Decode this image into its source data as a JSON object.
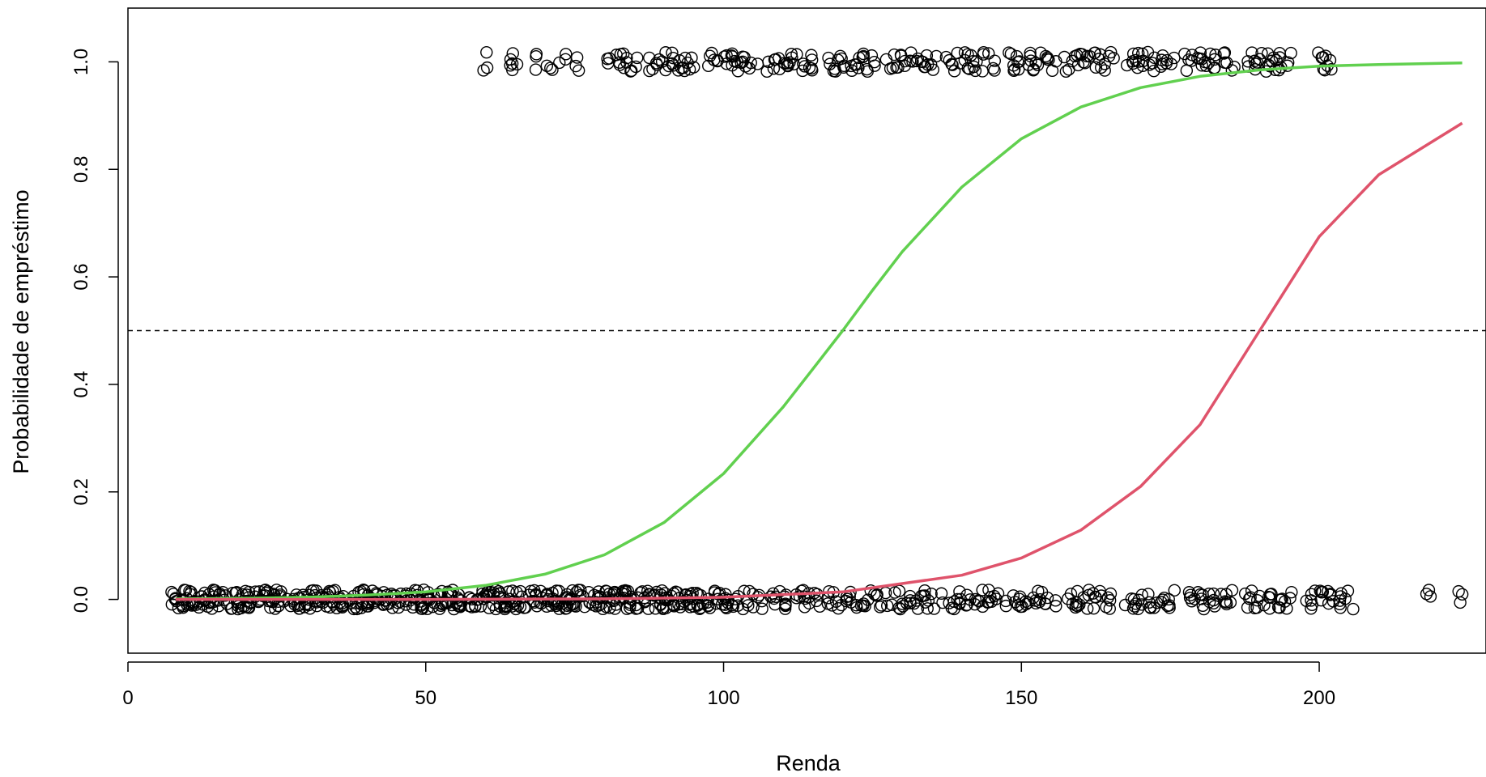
{
  "chart_data": {
    "type": "scatter",
    "title": "",
    "xlabel": "Renda",
    "ylabel": "Probabilidade de empréstimo",
    "xlim": [
      0,
      228
    ],
    "ylim": [
      -0.1,
      1.1
    ],
    "x_ticks": [
      0,
      50,
      100,
      150,
      200
    ],
    "x_tick_labels": [
      "0",
      "50",
      "100",
      "150",
      "200"
    ],
    "y_ticks": [
      0.0,
      0.2,
      0.4,
      0.6,
      0.8,
      1.0
    ],
    "y_tick_labels": [
      "0.0",
      "0.2",
      "0.4",
      "0.6",
      "0.8",
      "1.0"
    ],
    "grid": false,
    "reference_line": {
      "y": 0.5,
      "style": "dashed",
      "color": "#000000"
    },
    "points": {
      "marker": "open-circle",
      "color": "#000000",
      "jitter": 0.018,
      "groups": [
        {
          "y": 0.0,
          "x": [
            8,
            9,
            10,
            11,
            12,
            13,
            14,
            15,
            16,
            18,
            19,
            20,
            21,
            22,
            23,
            24,
            25,
            26,
            28,
            29,
            30,
            31,
            32,
            33,
            34,
            35,
            36,
            38,
            39,
            40,
            41,
            42,
            43,
            44,
            45,
            46,
            48,
            49,
            50,
            51,
            52,
            53,
            54,
            55,
            56,
            58,
            59,
            60,
            61,
            62,
            63,
            64,
            65,
            66,
            68,
            69,
            70,
            71,
            72,
            73,
            74,
            75,
            76,
            78,
            79,
            80,
            81,
            82,
            83,
            84,
            85,
            86,
            88,
            89,
            90,
            91,
            92,
            93,
            94,
            95,
            96,
            98,
            99,
            100,
            101,
            102,
            103,
            104,
            105,
            106,
            108,
            109,
            110,
            111,
            112,
            113,
            114,
            115,
            116,
            118,
            119,
            120,
            121,
            122,
            123,
            124,
            125,
            126,
            128,
            129,
            130,
            131,
            132,
            133,
            134,
            135,
            136,
            138,
            139,
            140,
            141,
            142,
            143,
            144,
            145,
            146,
            148,
            149,
            150,
            151,
            152,
            153,
            154,
            155,
            158,
            159,
            160,
            161,
            162,
            163,
            164,
            165,
            168,
            169,
            170,
            171,
            172,
            173,
            174,
            175,
            178,
            179,
            180,
            181,
            182,
            183,
            184,
            185,
            188,
            189,
            190,
            191,
            192,
            193,
            194,
            195,
            198,
            199,
            200,
            201,
            202,
            203,
            204,
            205,
            218,
            224
          ]
        },
        {
          "y": 1.0,
          "x": [
            60,
            64,
            65,
            69,
            71,
            73,
            75,
            81,
            82,
            83,
            84,
            85,
            88,
            89,
            90,
            91,
            92,
            93,
            94,
            95,
            98,
            99,
            100,
            101,
            102,
            103,
            104,
            105,
            108,
            109,
            110,
            111,
            112,
            113,
            114,
            115,
            118,
            119,
            120,
            121,
            122,
            123,
            124,
            125,
            128,
            129,
            130,
            131,
            132,
            133,
            134,
            135,
            138,
            139,
            140,
            141,
            142,
            143,
            144,
            145,
            148,
            149,
            150,
            151,
            152,
            153,
            154,
            155,
            158,
            159,
            160,
            161,
            162,
            163,
            164,
            165,
            168,
            169,
            170,
            171,
            172,
            173,
            174,
            175,
            178,
            179,
            180,
            181,
            182,
            183,
            184,
            185,
            188,
            189,
            190,
            191,
            192,
            193,
            194,
            195,
            200,
            201,
            202
          ]
        }
      ]
    },
    "series": [
      {
        "color": "#61d04f",
        "values_x": [
          8,
          20,
          30,
          40,
          50,
          60,
          70,
          80,
          90,
          100,
          110,
          115,
          120,
          125,
          130,
          140,
          150,
          160,
          170,
          180,
          190,
          200,
          210,
          224
        ],
        "values_y": [
          0.001,
          0.002,
          0.004,
          0.008,
          0.014,
          0.026,
          0.047,
          0.083,
          0.143,
          0.234,
          0.358,
          0.429,
          0.5,
          0.575,
          0.647,
          0.767,
          0.857,
          0.916,
          0.952,
          0.973,
          0.985,
          0.992,
          0.995,
          0.998
        ]
      },
      {
        "color": "#df536b",
        "values_x": [
          8,
          50,
          80,
          100,
          120,
          140,
          150,
          160,
          170,
          180,
          190,
          200,
          210,
          224
        ],
        "values_y": [
          0.0,
          0.0,
          0.001,
          0.004,
          0.014,
          0.045,
          0.077,
          0.129,
          0.21,
          0.325,
          0.5,
          0.675,
          0.79,
          0.886
        ]
      }
    ]
  }
}
